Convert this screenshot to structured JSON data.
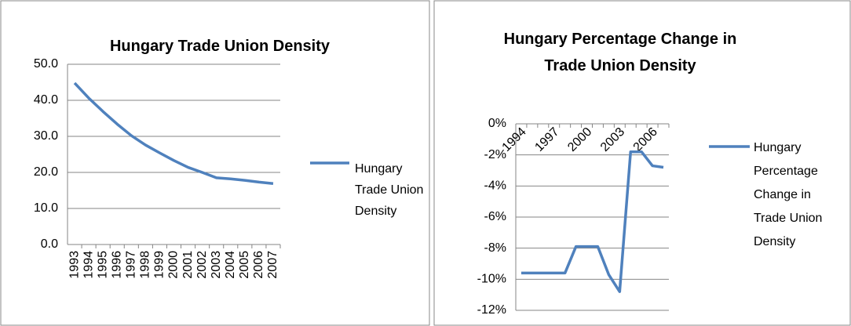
{
  "chart_data": [
    {
      "type": "line",
      "title": "Hungary Trade Union Density",
      "categories": [
        "1993",
        "1994",
        "1995",
        "1996",
        "1997",
        "1998",
        "1999",
        "2000",
        "2001",
        "2002",
        "2003",
        "2004",
        "2005",
        "2006",
        "2007"
      ],
      "series": [
        {
          "name": "Hungary Trade Union Density",
          "color": "#4f81bd",
          "values": [
            44.8,
            40.6,
            36.9,
            33.4,
            30.2,
            27.6,
            25.4,
            23.3,
            21.4,
            20.0,
            18.5,
            18.2,
            17.8,
            17.3,
            16.9
          ]
        }
      ],
      "ylim": [
        0,
        50
      ],
      "yticks": [
        {
          "value": 0,
          "label": "0.0"
        },
        {
          "value": 10,
          "label": "10.0"
        },
        {
          "value": 20,
          "label": "20.0"
        },
        {
          "value": 30,
          "label": "30.0"
        },
        {
          "value": 40,
          "label": "40.0"
        },
        {
          "value": 50,
          "label": "50.0"
        }
      ],
      "grid": true,
      "legend": "right"
    },
    {
      "type": "line",
      "title": "Hungary Percentage Change in Trade Union Density",
      "categories": [
        "1994",
        null,
        null,
        "1997",
        null,
        null,
        "2000",
        null,
        null,
        "2003",
        null,
        null,
        "2006",
        null
      ],
      "series": [
        {
          "name": "Hungary Percentage Change in Trade Union Density",
          "color": "#4f81bd",
          "values": [
            -9.6,
            -9.6,
            -9.6,
            -9.6,
            -9.6,
            -7.9,
            -7.9,
            -7.9,
            -9.7,
            -10.8,
            -1.8,
            -1.8,
            -2.7,
            -2.8
          ]
        }
      ],
      "ylim": [
        -12,
        0
      ],
      "yticks": [
        {
          "value": -12,
          "label": "-12%"
        },
        {
          "value": -10,
          "label": "-10%"
        },
        {
          "value": -8,
          "label": "-8%"
        },
        {
          "value": -6,
          "label": "-6%"
        },
        {
          "value": -4,
          "label": "-4%"
        },
        {
          "value": -2,
          "label": "-2%"
        },
        {
          "value": 0,
          "label": "0%"
        }
      ],
      "grid": true,
      "legend": "right"
    }
  ]
}
